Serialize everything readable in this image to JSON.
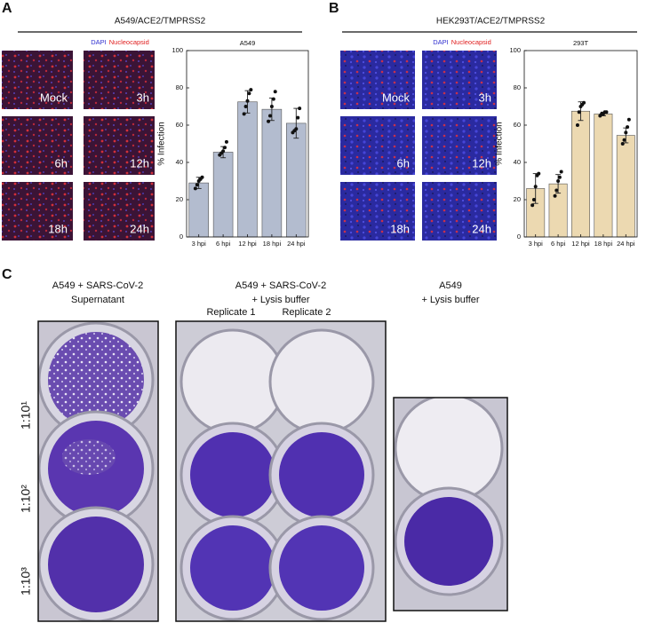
{
  "panels": [
    {
      "label": "A",
      "title": "A549/ACE2/TMPRSS2",
      "legend": [
        "DAPI",
        "Nucleocapsid"
      ],
      "images": [
        "Mock",
        "3h",
        "6h",
        "12h",
        "18h",
        "24h"
      ]
    },
    {
      "label": "B",
      "title": "HEK293T/ACE2/TMPRSS2",
      "legend": [
        "DAPI",
        "Nucleocapsid"
      ],
      "images": [
        "Mock",
        "3h",
        "6h",
        "12h",
        "18h",
        "24h"
      ]
    },
    {
      "label": "C",
      "groups": [
        {
          "title": [
            "A549 + SARS-CoV-2",
            "Supernatant"
          ]
        },
        {
          "title": [
            "A549 + SARS-CoV-2",
            "+ Lysis buffer"
          ],
          "replicates": [
            "Replicate 1",
            "Replicate 2"
          ]
        },
        {
          "title": [
            "A549",
            "+ Lysis buffer"
          ]
        }
      ],
      "dilutions": [
        "1:10¹",
        "1:10²",
        "1:10³"
      ]
    }
  ],
  "chart_data": [
    {
      "type": "bar",
      "title": "A549",
      "y_label": "% Infection",
      "categories": [
        "3 hpi",
        "6 hpi",
        "12 hpi",
        "18 hpi",
        "24 hpi"
      ],
      "values": [
        29,
        45.5,
        72.5,
        68.5,
        61
      ],
      "errors": [
        3,
        3,
        6,
        6,
        8
      ],
      "points": [
        [
          26,
          28,
          30,
          31,
          32
        ],
        [
          44,
          45,
          46,
          48,
          51
        ],
        [
          66,
          70,
          73,
          77,
          79
        ],
        [
          62,
          65,
          70,
          74,
          78
        ],
        [
          56,
          57,
          58,
          64,
          69
        ]
      ],
      "color": "#b3bccf",
      "ylim": [
        0,
        100
      ],
      "yticks": [
        0,
        20,
        40,
        60,
        80,
        100
      ]
    },
    {
      "type": "bar",
      "title": "293T",
      "y_label": "% Infection",
      "categories": [
        "3 hpi",
        "6 hpi",
        "12 hpi",
        "18 hpi",
        "24 hpi"
      ],
      "values": [
        26,
        28.5,
        67.5,
        66,
        54.5
      ],
      "errors": [
        8,
        5,
        5,
        1,
        4
      ],
      "points": [
        [
          17,
          20,
          27,
          33,
          34
        ],
        [
          22,
          25,
          30,
          32,
          35
        ],
        [
          60,
          67,
          70,
          71,
          72
        ],
        [
          65,
          66,
          66,
          67,
          67
        ],
        [
          50,
          52,
          56,
          59,
          63
        ]
      ],
      "color": "#ecd9b1",
      "ylim": [
        0,
        100
      ],
      "yticks": [
        0,
        20,
        40,
        60,
        80,
        100
      ]
    }
  ]
}
